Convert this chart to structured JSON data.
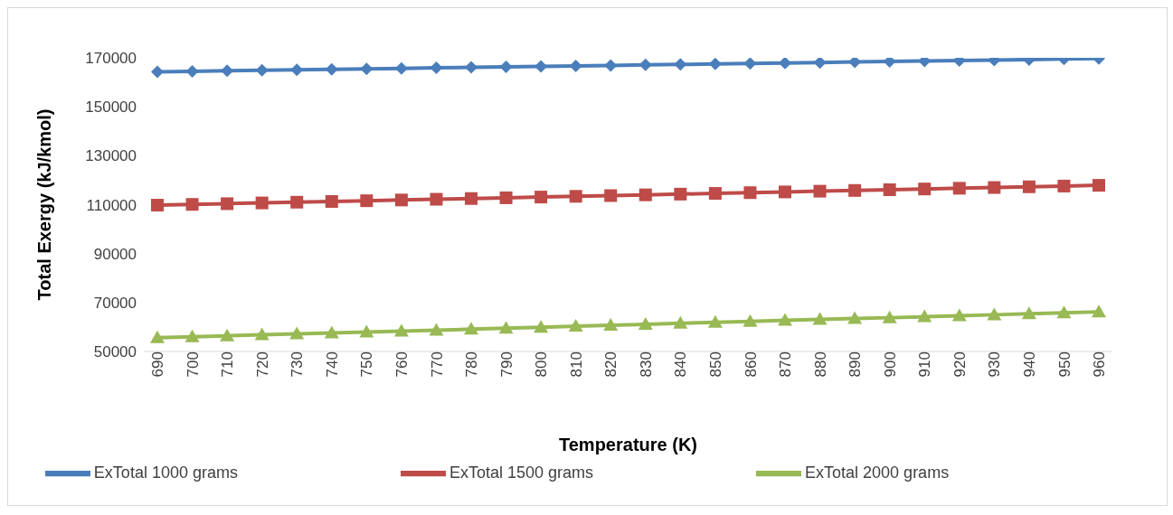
{
  "chart_data": {
    "type": "line",
    "xlabel": "Temperature (K)",
    "ylabel": "Total Exergy (kJ/kmol)",
    "categories": [
      "690",
      "700",
      "710",
      "720",
      "730",
      "740",
      "750",
      "760",
      "770",
      "780",
      "790",
      "800",
      "810",
      "820",
      "830",
      "840",
      "850",
      "860",
      "870",
      "880",
      "890",
      "900",
      "910",
      "920",
      "930",
      "940",
      "950",
      "960"
    ],
    "series": [
      {
        "name": "ExTotal 1000 grams",
        "color": "#4a7ebb",
        "marker": "diamond",
        "values": [
          164300,
          164500,
          164700,
          164900,
          165100,
          165300,
          165500,
          165700,
          165900,
          166100,
          166300,
          166500,
          166700,
          166900,
          167100,
          167300,
          167500,
          167700,
          167900,
          168100,
          168300,
          168500,
          168700,
          168900,
          169100,
          169300,
          169500,
          169700
        ]
      },
      {
        "name": "ExTotal 1500 grams",
        "color": "#be4b48",
        "marker": "square",
        "values": [
          109800,
          110100,
          110400,
          110700,
          111000,
          111300,
          111600,
          111900,
          112200,
          112500,
          112800,
          113100,
          113400,
          113700,
          114000,
          114300,
          114600,
          114900,
          115200,
          115500,
          115800,
          116100,
          116400,
          116700,
          117000,
          117300,
          117600,
          117900
        ]
      },
      {
        "name": "ExTotal 2000 grams",
        "color": "#98b954",
        "marker": "triangle",
        "values": [
          55600,
          56000,
          56400,
          56800,
          57200,
          57600,
          57900,
          58300,
          58700,
          59100,
          59500,
          59900,
          60300,
          60700,
          61100,
          61500,
          61900,
          62300,
          62700,
          63100,
          63500,
          63800,
          64200,
          64600,
          65000,
          65400,
          65800,
          66200
        ]
      }
    ],
    "ylim": [
      50000,
      170000
    ],
    "yticks": [
      50000,
      70000,
      90000,
      110000,
      130000,
      150000,
      170000
    ],
    "legend": "bottom"
  }
}
